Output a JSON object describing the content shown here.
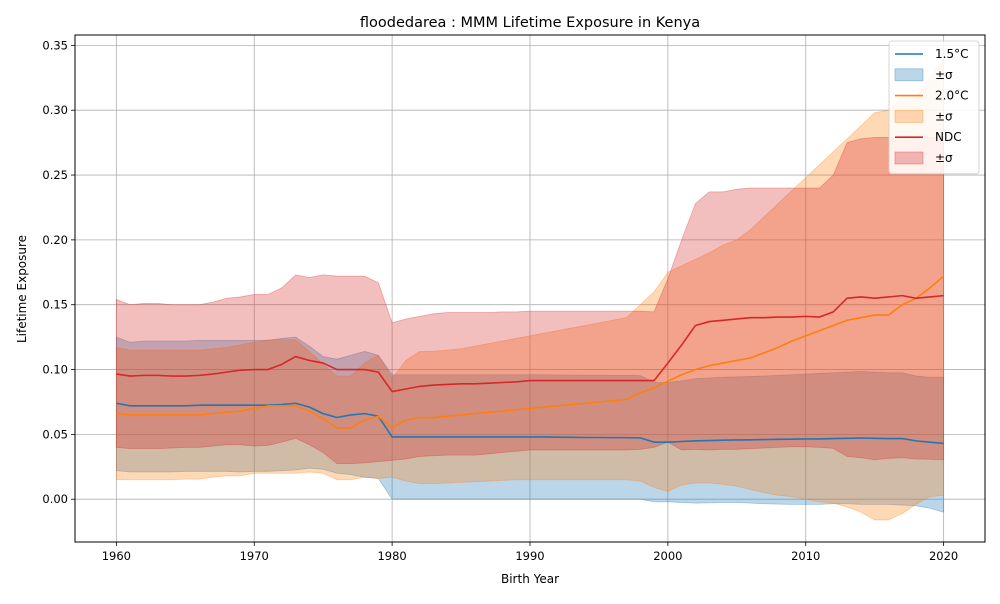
{
  "chart_data": {
    "type": "line",
    "title": "floodedarea : MMM Lifetime Exposure in Kenya",
    "xlabel": "Birth Year",
    "ylabel": "Lifetime Exposure",
    "xlim": [
      1957,
      2023
    ],
    "ylim": [
      -0.033,
      0.358
    ],
    "xticks": [
      1960,
      1970,
      1980,
      1990,
      2000,
      2010,
      2020
    ],
    "yticks": [
      0.0,
      0.05,
      0.1,
      0.15,
      0.2,
      0.25,
      0.3,
      0.35
    ],
    "ytick_labels": [
      "0.00",
      "0.05",
      "0.10",
      "0.15",
      "0.20",
      "0.25",
      "0.30",
      "0.35"
    ],
    "grid": true,
    "legend_position": "top-right",
    "legend": [
      {
        "label": "1.5°C",
        "kind": "line",
        "series": 0
      },
      {
        "label": "±σ",
        "kind": "band",
        "series": 0
      },
      {
        "label": "2.0°C",
        "kind": "line",
        "series": 1
      },
      {
        "label": "±σ",
        "kind": "band",
        "series": 1
      },
      {
        "label": "NDC",
        "kind": "line",
        "series": 2
      },
      {
        "label": "±σ",
        "kind": "band",
        "series": 2
      }
    ],
    "x": [
      1960,
      1961,
      1962,
      1963,
      1964,
      1965,
      1966,
      1967,
      1968,
      1969,
      1970,
      1971,
      1972,
      1973,
      1974,
      1975,
      1976,
      1977,
      1978,
      1979,
      1980,
      1981,
      1982,
      1983,
      1984,
      1985,
      1986,
      1987,
      1988,
      1989,
      1990,
      1991,
      1992,
      1993,
      1994,
      1995,
      1996,
      1997,
      1998,
      1999,
      2000,
      2001,
      2002,
      2003,
      2004,
      2005,
      2006,
      2007,
      2008,
      2009,
      2010,
      2011,
      2012,
      2013,
      2014,
      2015,
      2016,
      2017,
      2018,
      2019,
      2020
    ],
    "series": [
      {
        "name": "1.5°C",
        "color": "#1f77b4",
        "values": [
          0.074,
          0.072,
          0.072,
          0.072,
          0.072,
          0.072,
          0.0725,
          0.0725,
          0.0725,
          0.0725,
          0.0725,
          0.0725,
          0.073,
          0.074,
          0.071,
          0.066,
          0.063,
          0.065,
          0.066,
          0.064,
          0.048,
          0.048,
          0.048,
          0.048,
          0.048,
          0.048,
          0.048,
          0.048,
          0.048,
          0.048,
          0.048,
          0.048,
          0.0478,
          0.0477,
          0.0476,
          0.0476,
          0.0475,
          0.0475,
          0.0473,
          0.044,
          0.044,
          0.0445,
          0.045,
          0.0452,
          0.0455,
          0.0457,
          0.0458,
          0.046,
          0.0462,
          0.0463,
          0.0465,
          0.0465,
          0.0468,
          0.047,
          0.0472,
          0.047,
          0.0468,
          0.0468,
          0.045,
          0.044,
          0.043
        ],
        "lower": [
          0.022,
          0.021,
          0.021,
          0.021,
          0.021,
          0.0215,
          0.0215,
          0.0215,
          0.0215,
          0.021,
          0.0215,
          0.0215,
          0.022,
          0.0225,
          0.024,
          0.023,
          0.02,
          0.019,
          0.017,
          0.016,
          0.0,
          0.0,
          0.0,
          0.0,
          0.0,
          0.0,
          0.0,
          0.0,
          0.0,
          0.0,
          0.0,
          0.0,
          0.0,
          0.0,
          0.0,
          0.0,
          0.0,
          0.0,
          0.0,
          -0.002,
          -0.002,
          -0.0025,
          -0.003,
          -0.0028,
          -0.0025,
          -0.0025,
          -0.003,
          -0.0035,
          -0.0038,
          -0.004,
          -0.004,
          -0.004,
          -0.0035,
          -0.0035,
          -0.004,
          -0.004,
          -0.004,
          -0.0045,
          -0.005,
          -0.007,
          -0.01
        ],
        "upper": [
          0.125,
          0.121,
          0.122,
          0.122,
          0.122,
          0.122,
          0.1225,
          0.1225,
          0.1225,
          0.1225,
          0.1225,
          0.1225,
          0.124,
          0.125,
          0.118,
          0.11,
          0.108,
          0.111,
          0.114,
          0.111,
          0.096,
          0.096,
          0.096,
          0.096,
          0.096,
          0.096,
          0.096,
          0.096,
          0.096,
          0.096,
          0.096,
          0.096,
          0.0958,
          0.0957,
          0.0956,
          0.0956,
          0.0955,
          0.0955,
          0.0953,
          0.09,
          0.09,
          0.0912,
          0.093,
          0.0935,
          0.094,
          0.0943,
          0.0946,
          0.095,
          0.0955,
          0.096,
          0.0965,
          0.097,
          0.0975,
          0.098,
          0.0985,
          0.098,
          0.0975,
          0.0975,
          0.095,
          0.094,
          0.094
        ]
      },
      {
        "name": "2.0°C",
        "color": "#ff7f0e",
        "values": [
          0.066,
          0.065,
          0.065,
          0.065,
          0.065,
          0.065,
          0.065,
          0.066,
          0.067,
          0.068,
          0.07,
          0.072,
          0.072,
          0.072,
          0.068,
          0.062,
          0.055,
          0.055,
          0.061,
          0.064,
          0.055,
          0.061,
          0.063,
          0.063,
          0.064,
          0.065,
          0.066,
          0.067,
          0.068,
          0.069,
          0.07,
          0.071,
          0.072,
          0.073,
          0.074,
          0.075,
          0.076,
          0.077,
          0.082,
          0.086,
          0.091,
          0.096,
          0.1,
          0.103,
          0.105,
          0.107,
          0.109,
          0.113,
          0.117,
          0.122,
          0.126,
          0.13,
          0.134,
          0.138,
          0.14,
          0.142,
          0.142,
          0.15,
          0.155,
          0.163,
          0.172
        ],
        "lower": [
          0.015,
          0.015,
          0.015,
          0.015,
          0.015,
          0.0155,
          0.0155,
          0.017,
          0.018,
          0.018,
          0.02,
          0.02,
          0.02,
          0.02,
          0.021,
          0.02,
          0.015,
          0.015,
          0.017,
          0.016,
          0.017,
          0.014,
          0.012,
          0.012,
          0.0125,
          0.013,
          0.0135,
          0.014,
          0.0145,
          0.015,
          0.015,
          0.015,
          0.015,
          0.015,
          0.015,
          0.015,
          0.015,
          0.015,
          0.014,
          0.009,
          0.006,
          0.011,
          0.0125,
          0.0125,
          0.0115,
          0.01,
          0.0075,
          0.005,
          0.003,
          0.002,
          0.0,
          -0.002,
          -0.003,
          -0.006,
          -0.01,
          -0.016,
          -0.016,
          -0.011,
          -0.004,
          0.002,
          0.003
        ],
        "upper": [
          0.117,
          0.115,
          0.115,
          0.115,
          0.115,
          0.115,
          0.115,
          0.116,
          0.117,
          0.119,
          0.121,
          0.123,
          0.123,
          0.123,
          0.114,
          0.104,
          0.095,
          0.095,
          0.105,
          0.111,
          0.093,
          0.107,
          0.114,
          0.114,
          0.115,
          0.116,
          0.118,
          0.12,
          0.122,
          0.124,
          0.126,
          0.128,
          0.13,
          0.132,
          0.134,
          0.136,
          0.138,
          0.14,
          0.15,
          0.16,
          0.175,
          0.18,
          0.185,
          0.19,
          0.196,
          0.2,
          0.208,
          0.218,
          0.228,
          0.238,
          0.248,
          0.258,
          0.268,
          0.278,
          0.288,
          0.298,
          0.3,
          0.31,
          0.31,
          0.325,
          0.34
        ]
      },
      {
        "name": "NDC",
        "color": "#d62728",
        "values": [
          0.0965,
          0.095,
          0.0955,
          0.0955,
          0.095,
          0.095,
          0.0955,
          0.0965,
          0.098,
          0.0995,
          0.1,
          0.1,
          0.104,
          0.11,
          0.107,
          0.105,
          0.1,
          0.1,
          0.1,
          0.098,
          0.083,
          0.085,
          0.087,
          0.088,
          0.0885,
          0.089,
          0.089,
          0.0895,
          0.09,
          0.0905,
          0.0915,
          0.0915,
          0.0915,
          0.0915,
          0.0915,
          0.0915,
          0.0915,
          0.0915,
          0.0915,
          0.0915,
          0.105,
          0.119,
          0.134,
          0.137,
          0.138,
          0.139,
          0.14,
          0.14,
          0.1405,
          0.1405,
          0.141,
          0.1405,
          0.1445,
          0.155,
          0.156,
          0.155,
          0.156,
          0.157,
          0.155,
          0.156,
          0.157
        ],
        "lower": [
          0.04,
          0.039,
          0.039,
          0.039,
          0.0395,
          0.04,
          0.04,
          0.041,
          0.042,
          0.042,
          0.041,
          0.0415,
          0.044,
          0.047,
          0.042,
          0.036,
          0.0275,
          0.0275,
          0.028,
          0.029,
          0.03,
          0.031,
          0.033,
          0.0335,
          0.034,
          0.034,
          0.034,
          0.035,
          0.036,
          0.037,
          0.038,
          0.038,
          0.038,
          0.038,
          0.038,
          0.038,
          0.038,
          0.038,
          0.0385,
          0.04,
          0.044,
          0.038,
          0.0385,
          0.038,
          0.0385,
          0.0385,
          0.039,
          0.0395,
          0.04,
          0.0405,
          0.0405,
          0.04,
          0.0392,
          0.033,
          0.032,
          0.0305,
          0.0315,
          0.032,
          0.031,
          0.0308,
          0.0305
        ],
        "upper": [
          0.154,
          0.15,
          0.151,
          0.151,
          0.15,
          0.15,
          0.15,
          0.152,
          0.155,
          0.156,
          0.158,
          0.158,
          0.163,
          0.173,
          0.171,
          0.173,
          0.172,
          0.172,
          0.172,
          0.167,
          0.136,
          0.139,
          0.141,
          0.143,
          0.144,
          0.144,
          0.144,
          0.144,
          0.1445,
          0.1445,
          0.145,
          0.145,
          0.145,
          0.145,
          0.145,
          0.145,
          0.145,
          0.145,
          0.145,
          0.1445,
          0.17,
          0.2,
          0.228,
          0.237,
          0.237,
          0.239,
          0.24,
          0.24,
          0.24,
          0.24,
          0.24,
          0.24,
          0.25,
          0.275,
          0.278,
          0.279,
          0.279,
          0.279,
          0.279,
          0.279,
          0.28
        ]
      }
    ]
  }
}
